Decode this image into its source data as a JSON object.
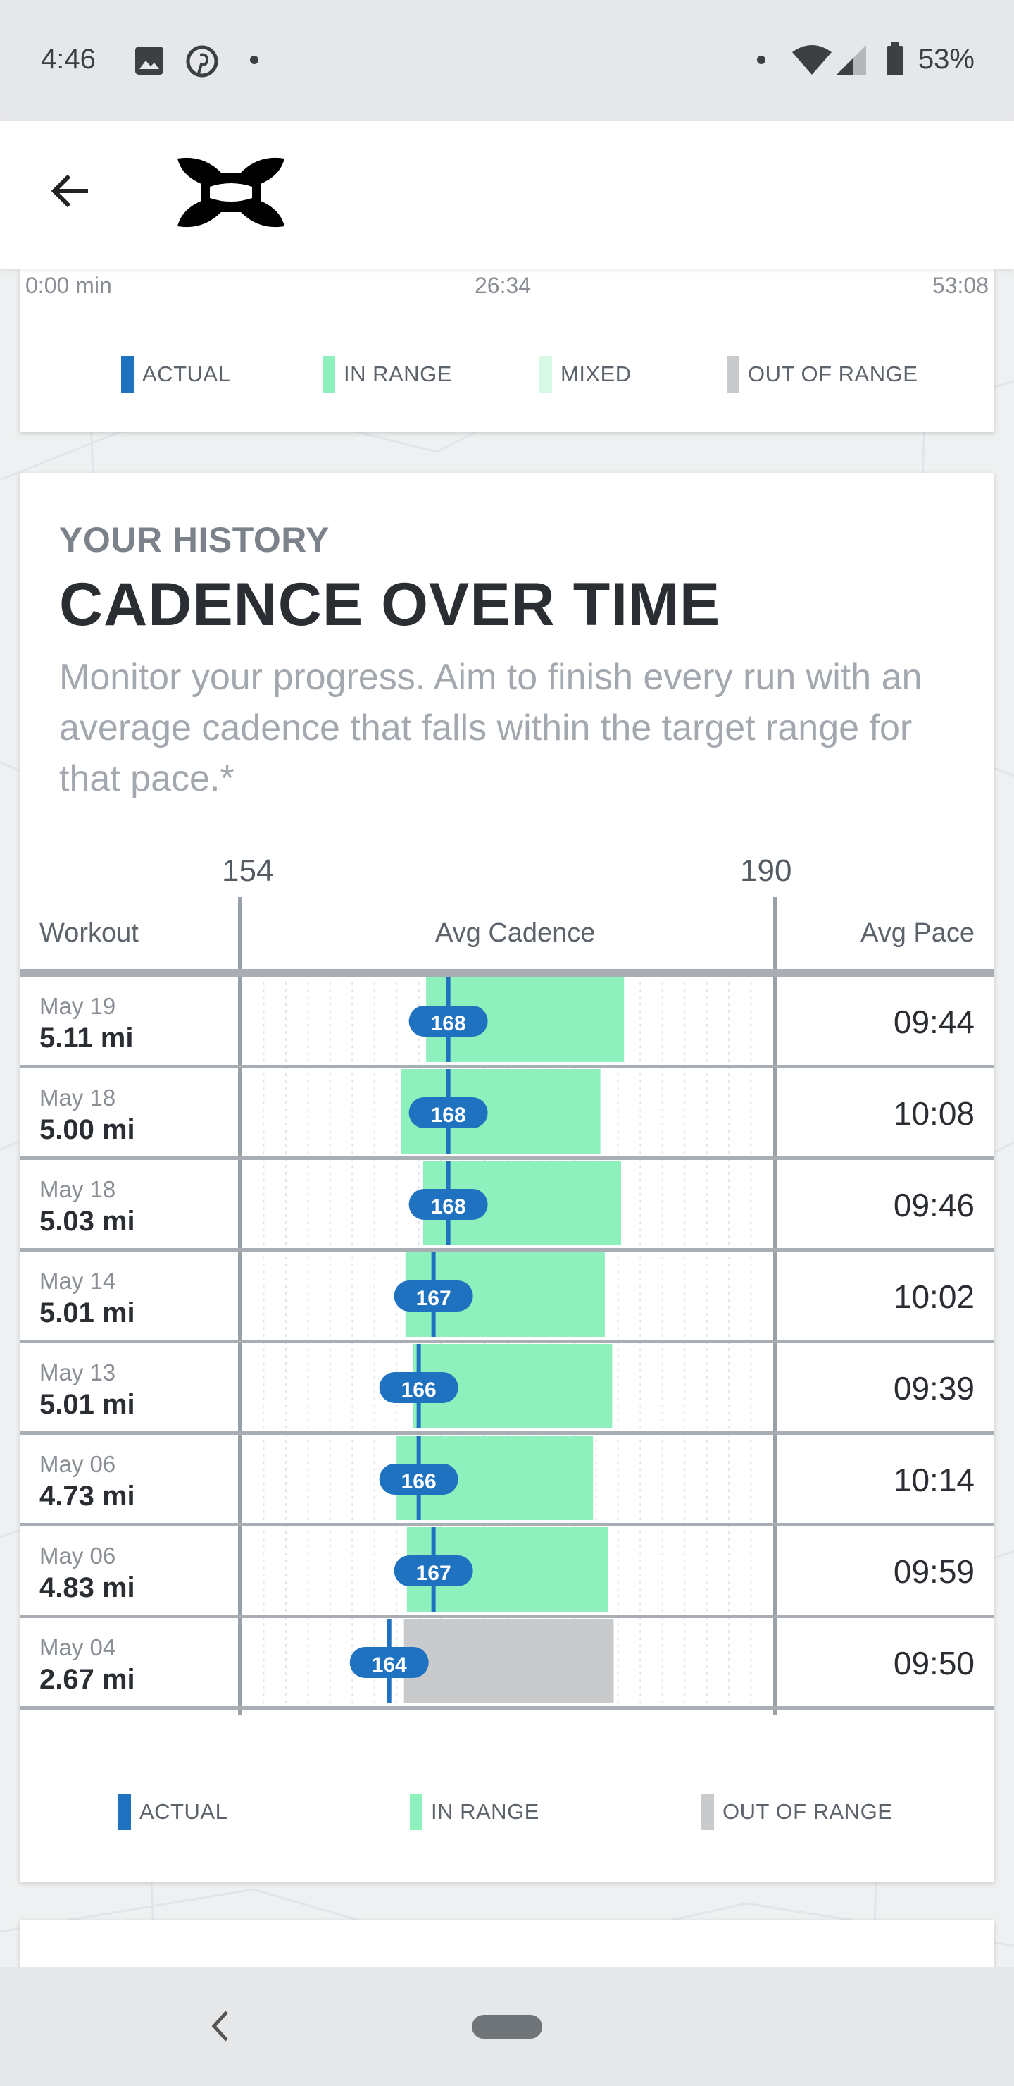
{
  "status_bar": {
    "time": "4:46",
    "battery": "53%",
    "icons": [
      "image-icon",
      "pinterest-icon",
      "dot-icon",
      "wifi-icon",
      "signal-icon",
      "battery-icon"
    ]
  },
  "app_bar": {
    "back_icon": "arrow-left-icon",
    "logo": "under-armour-logo"
  },
  "top_card": {
    "axis": {
      "start": "0:00 min",
      "mid": "26:34",
      "end": "53:08"
    },
    "legend": [
      {
        "label": "ACTUAL",
        "color": "#1f72c0"
      },
      {
        "label": "IN RANGE",
        "color": "#8ef0bc"
      },
      {
        "label": "MIXED",
        "color": "#d8f8e6"
      },
      {
        "label": "OUT OF RANGE",
        "color": "#c9cacc"
      }
    ]
  },
  "history": {
    "eyebrow": "YOUR HISTORY",
    "title": "CADENCE OVER TIME",
    "description": "Monitor your progress. Aim to finish every run with an average cadence that falls within the target range for that pace.*",
    "scale_min": "154",
    "scale_max": "190",
    "col_workout": "Workout",
    "col_cadence": "Avg Cadence",
    "col_pace": "Avg Pace",
    "rows": [
      {
        "date": "May 19",
        "distance": "5.11 mi",
        "cadence": "168",
        "pace": "09:44"
      },
      {
        "date": "May 18",
        "distance": "5.00 mi",
        "cadence": "168",
        "pace": "10:08"
      },
      {
        "date": "May 18",
        "distance": "5.03 mi",
        "cadence": "168",
        "pace": "09:46"
      },
      {
        "date": "May 14",
        "distance": "5.01 mi",
        "cadence": "167",
        "pace": "10:02"
      },
      {
        "date": "May 13",
        "distance": "5.01 mi",
        "cadence": "166",
        "pace": "09:39"
      },
      {
        "date": "May 06",
        "distance": "4.73 mi",
        "cadence": "166",
        "pace": "10:14"
      },
      {
        "date": "May 06",
        "distance": "4.83 mi",
        "cadence": "167",
        "pace": "09:59"
      },
      {
        "date": "May 04",
        "distance": "2.67 mi",
        "cadence": "164",
        "pace": "09:50"
      }
    ],
    "legend": [
      {
        "label": "ACTUAL",
        "color": "#1f72c0"
      },
      {
        "label": "IN RANGE",
        "color": "#8ef0bc"
      },
      {
        "label": "OUT OF RANGE",
        "color": "#c9cacc"
      }
    ]
  },
  "chart_data": {
    "type": "bar",
    "title": "CADENCE OVER TIME",
    "xlabel": "Avg Cadence",
    "xlim": [
      154,
      190
    ],
    "categories": [
      "May 19",
      "May 18",
      "May 18",
      "May 14",
      "May 13",
      "May 06",
      "May 06",
      "May 04"
    ],
    "series": [
      {
        "name": "ACTUAL",
        "values": [
          168,
          168,
          168,
          167,
          166,
          166,
          167,
          164
        ]
      },
      {
        "name": "IN RANGE",
        "ranges": [
          [
            166.5,
            179.9
          ],
          [
            164.8,
            178.3
          ],
          [
            166.3,
            179.7
          ],
          [
            165.1,
            178.6
          ],
          [
            165.6,
            179.1
          ],
          [
            164.5,
            177.8
          ],
          [
            165.2,
            178.8
          ],
          null
        ]
      },
      {
        "name": "OUT OF RANGE",
        "ranges": [
          null,
          null,
          null,
          null,
          null,
          null,
          null,
          [
            165.0,
            179.2
          ]
        ]
      }
    ],
    "range_colors": [
      "#8ef0bc",
      "#8ef0bc",
      "#8ef0bc",
      "#8ef0bc",
      "#8ef0bc",
      "#8ef0bc",
      "#8ef0bc",
      "#c9cacc"
    ],
    "grid": true
  }
}
